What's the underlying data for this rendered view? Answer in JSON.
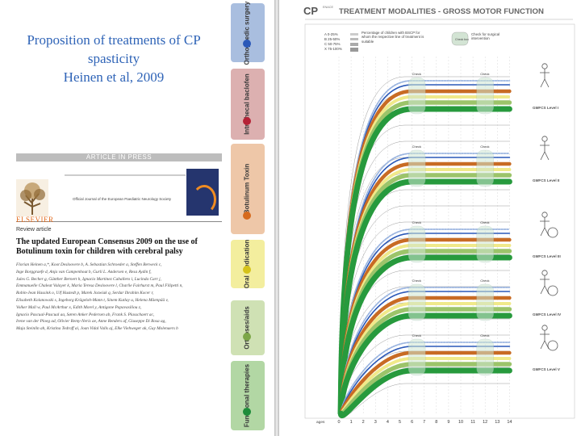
{
  "slide": {
    "title_lines": [
      "Proposition of treatments of CP",
      "spasticity",
      "Heinen et al, 2009"
    ]
  },
  "paper": {
    "in_press": "ARTICLE IN PRESS",
    "publisher": "ELSEVIER",
    "journal": "Official Journal of the European Paediatric Neurology Society",
    "section": "Review article",
    "title": "The updated European Consensus 2009 on the use of Botulinum toxin for children with cerebral palsy",
    "authors": [
      "Florian Heinen a,*, Koot Desloovere b, A. Sebastian Schroeder a, Steffen Berweck c,",
      "Inge Borggraefe d, Anja van Campenhout b, Gurli L. Andersen e, Resa Aydin f,",
      "Jules G. Becher g, Günther Bernert h, Ignacio Martinez Caballero i, Lucinda Carr j,",
      "Emmanuelle Chaleat Valayer k, Maria Teresa Desloovere l, Charlie Fairhurst m, Paul Filipetti n,",
      "Robin-Jean Hassink o, Ulf Hustedt p, Marek Jozwiak q, Serdar Ibrahim Kocer r,",
      "Elisabeth Kolanowski s, Ingeborg Krägeloh-Mann t, Sinem Kutlay u, Helena Mäenpää v,",
      "Volker Mall w, Paul McArthur x, Edith Morel y, Antigone Papavasiliou z,",
      "Ignacio Pascual-Pascual aa, Søren Anker Pedersen ab, Frank S. Plasschaert ac,",
      "Irene van der Ploeg ad, Olivier Remy-Neris ae, Anne Renders af, Giuseppe Di Rosa ag,",
      "Maja Steinlin ah, Kristina Tedroff ai, Joan Vidal Valls aj, Elke Viehweger ak, Guy Molenaers b"
    ]
  },
  "modalities": [
    {
      "label": "Orthopaedic surgery",
      "bg": "#a9bedf",
      "dot": "#2a58b8"
    },
    {
      "label": "Intrathecal baclofen",
      "bg": "#dcb0b0",
      "dot": "#b52236"
    },
    {
      "label": "Botulinum Toxin",
      "bg": "#eec7a8",
      "dot": "#d66a1d"
    },
    {
      "label": "Oral medication",
      "bg": "#f3ee9e",
      "dot": "#d5c31a"
    },
    {
      "label": "Orthoses/aids",
      "bg": "#cfe1b4",
      "dot": "#7ca648"
    },
    {
      "label": "Functional therapies",
      "bg": "#b2d7a4",
      "dot": "#1d8c3a"
    }
  ],
  "chart": {
    "logo": "CP",
    "logo_sup": "ENACE",
    "title": "TREATMENT MODALITIES - GROSS MOTOR FUNCTION",
    "legend_pcts": [
      "A  0-25%",
      "B  25-50%",
      "C  50-75%",
      "X  75-100%"
    ],
    "legend_text": "Percentage of children with BSCP for whom the respective line of treatment is suitable",
    "legend_check_label": "Check\nbox",
    "legend_check_text": "Check for surgical intervention",
    "x_label": "ages",
    "x_ticks": [
      "0",
      "1",
      "2",
      "3",
      "4",
      "5",
      "6",
      "7",
      "8",
      "9",
      "10",
      "11",
      "12",
      "13",
      "14"
    ],
    "levels": [
      "GMFCS Level I",
      "GMFCS Level II",
      "GMFCS Level III",
      "GMFCS Level IV",
      "GMFCS Level V"
    ],
    "check_label": "Check",
    "colors": {
      "ortho": "#2a58b8",
      "ortho_light": "#9bb5e0",
      "botox": "#c86b24",
      "botox_light": "#e6b08a",
      "oral": "#f0e98a",
      "orthoses": "#9cc46a",
      "functional": "#279a3d",
      "functional_light": "#6cbf74"
    }
  }
}
